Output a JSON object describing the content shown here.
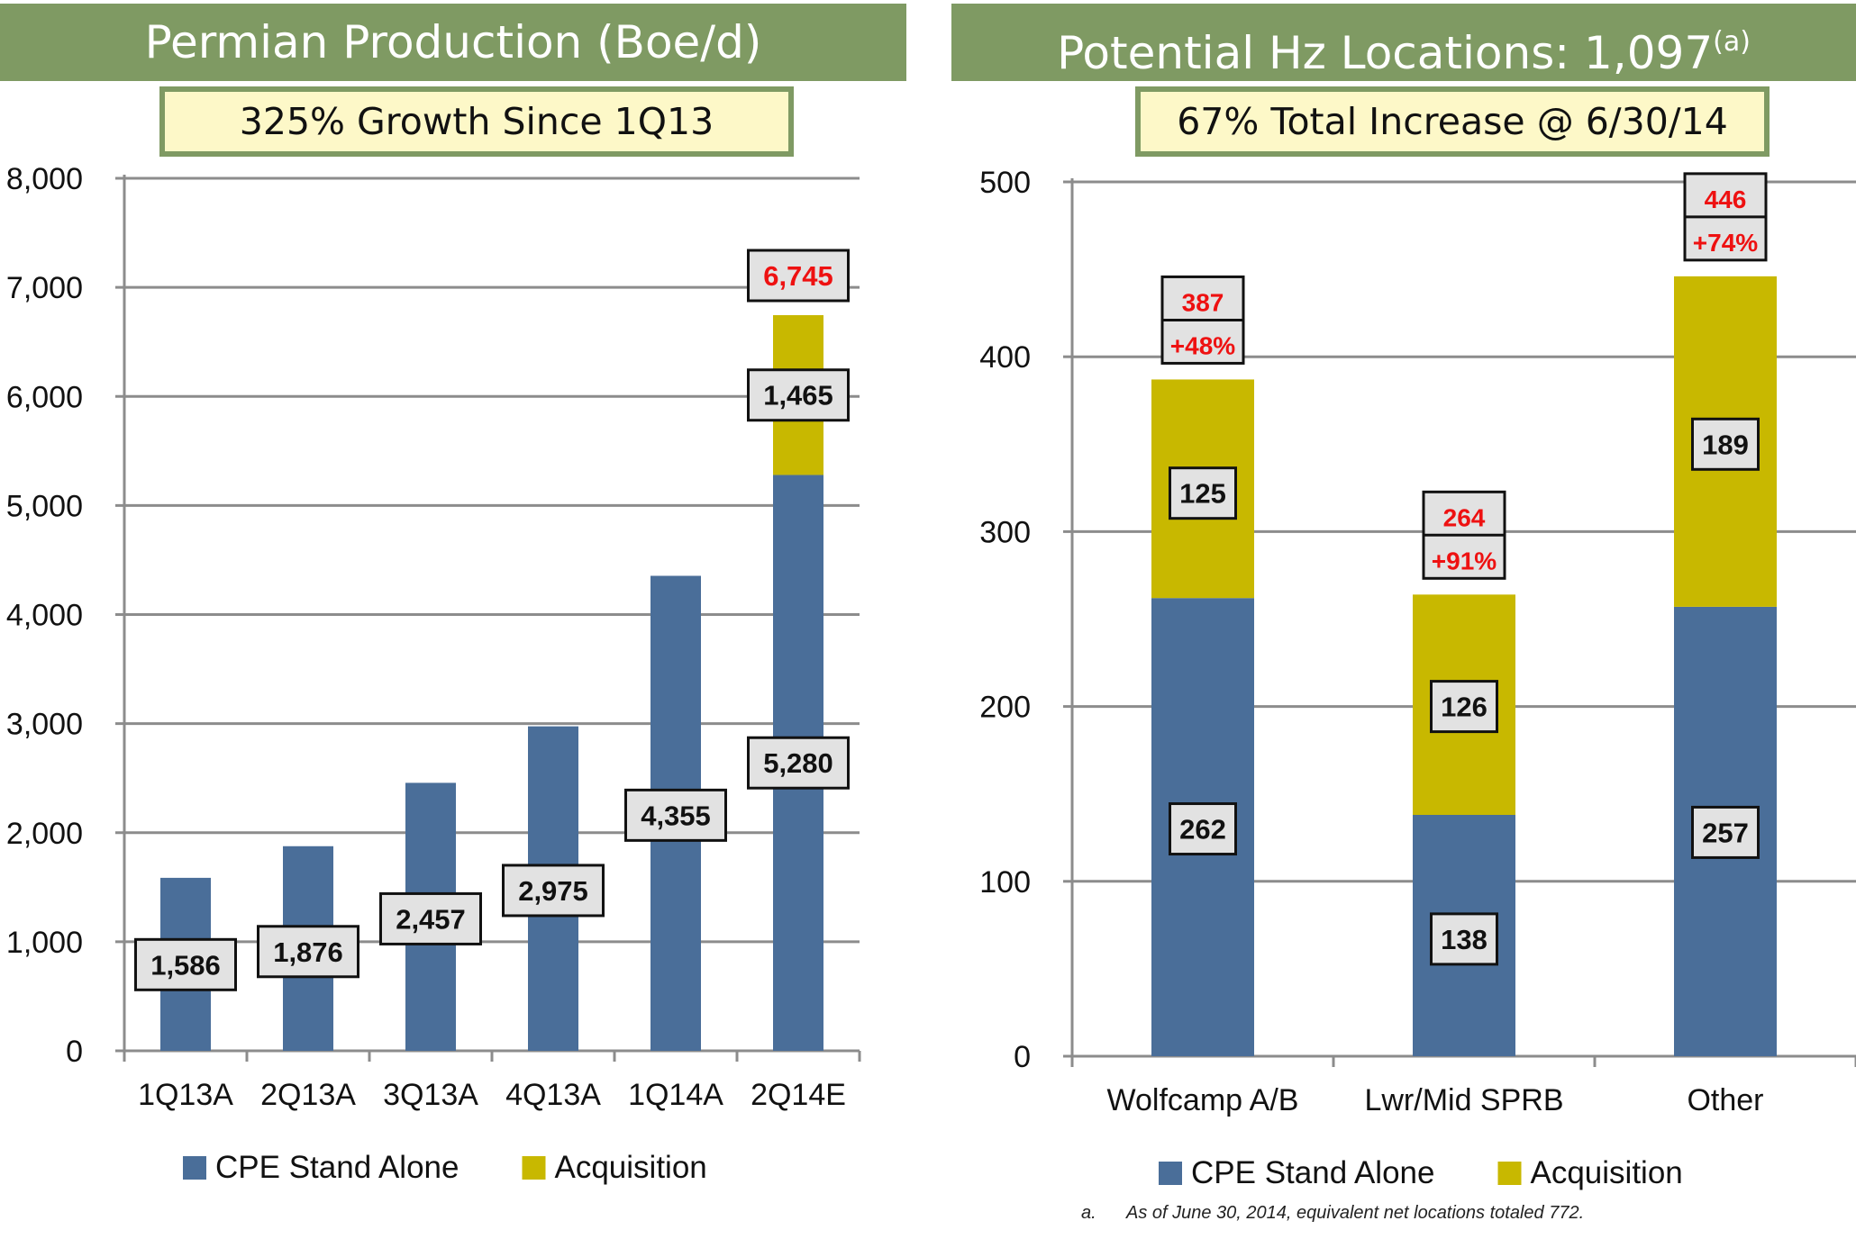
{
  "left_panel": {
    "banner": "Permian Production (Boe/d)",
    "subtitle": "325% Growth Since 1Q13"
  },
  "right_panel": {
    "banner_text": "Potential Hz Locations: 1,097",
    "banner_sup": "(a)",
    "subtitle": "67% Total Increase @ 6/30/14"
  },
  "footnote": {
    "letter": "a.",
    "text": "As of June 30, 2014, equivalent net locations totaled 772."
  },
  "colors": {
    "cpe_stand_alone": "#4a6e99",
    "acquisition": "#c8b800",
    "banner": "#7f9a63",
    "callout_red": "#ee1111",
    "label_box": "#e2e2e2"
  },
  "chart_data": [
    {
      "type": "bar",
      "stacked": true,
      "categories": [
        "1Q13A",
        "2Q13A",
        "3Q13A",
        "4Q13A",
        "1Q14A",
        "2Q14E"
      ],
      "series": [
        {
          "name": "CPE Stand Alone",
          "values": [
            1586,
            1876,
            2457,
            2975,
            4355,
            5280
          ],
          "labels": [
            "1,586",
            "1,876",
            "2,457",
            "2,975",
            "4,355",
            "5,280"
          ]
        },
        {
          "name": "Acquisition",
          "values": [
            0,
            0,
            0,
            0,
            0,
            1465
          ],
          "labels": [
            "",
            "",
            "",
            "",
            "",
            "1,465"
          ]
        }
      ],
      "totals": [
        {
          "category": "2Q14E",
          "label": "6,745"
        }
      ],
      "ylim": [
        0,
        8000
      ],
      "yticks": [
        0,
        1000,
        2000,
        3000,
        4000,
        5000,
        6000,
        7000,
        8000
      ],
      "ytick_labels": [
        "0",
        "1,000",
        "2,000",
        "3,000",
        "4,000",
        "5,000",
        "6,000",
        "7,000",
        "8,000"
      ],
      "grid": true,
      "legend": "bottom"
    },
    {
      "type": "bar",
      "stacked": true,
      "categories": [
        "Wolfcamp A/B",
        "Lwr/Mid SPRB",
        "Other"
      ],
      "series": [
        {
          "name": "CPE Stand Alone",
          "values": [
            262,
            138,
            257
          ],
          "labels": [
            "262",
            "138",
            "257"
          ]
        },
        {
          "name": "Acquisition",
          "values": [
            125,
            126,
            189
          ],
          "labels": [
            "125",
            "126",
            "189"
          ]
        }
      ],
      "totals": [
        {
          "category": "Wolfcamp A/B",
          "label": "387",
          "change": "+48%"
        },
        {
          "category": "Lwr/Mid SPRB",
          "label": "264",
          "change": "+91%"
        },
        {
          "category": "Other",
          "label": "446",
          "change": "+74%"
        }
      ],
      "ylim": [
        0,
        500
      ],
      "yticks": [
        0,
        100,
        200,
        300,
        400,
        500
      ],
      "ytick_labels": [
        "0",
        "100",
        "200",
        "300",
        "400",
        "500"
      ],
      "grid": true,
      "legend": "bottom"
    }
  ]
}
